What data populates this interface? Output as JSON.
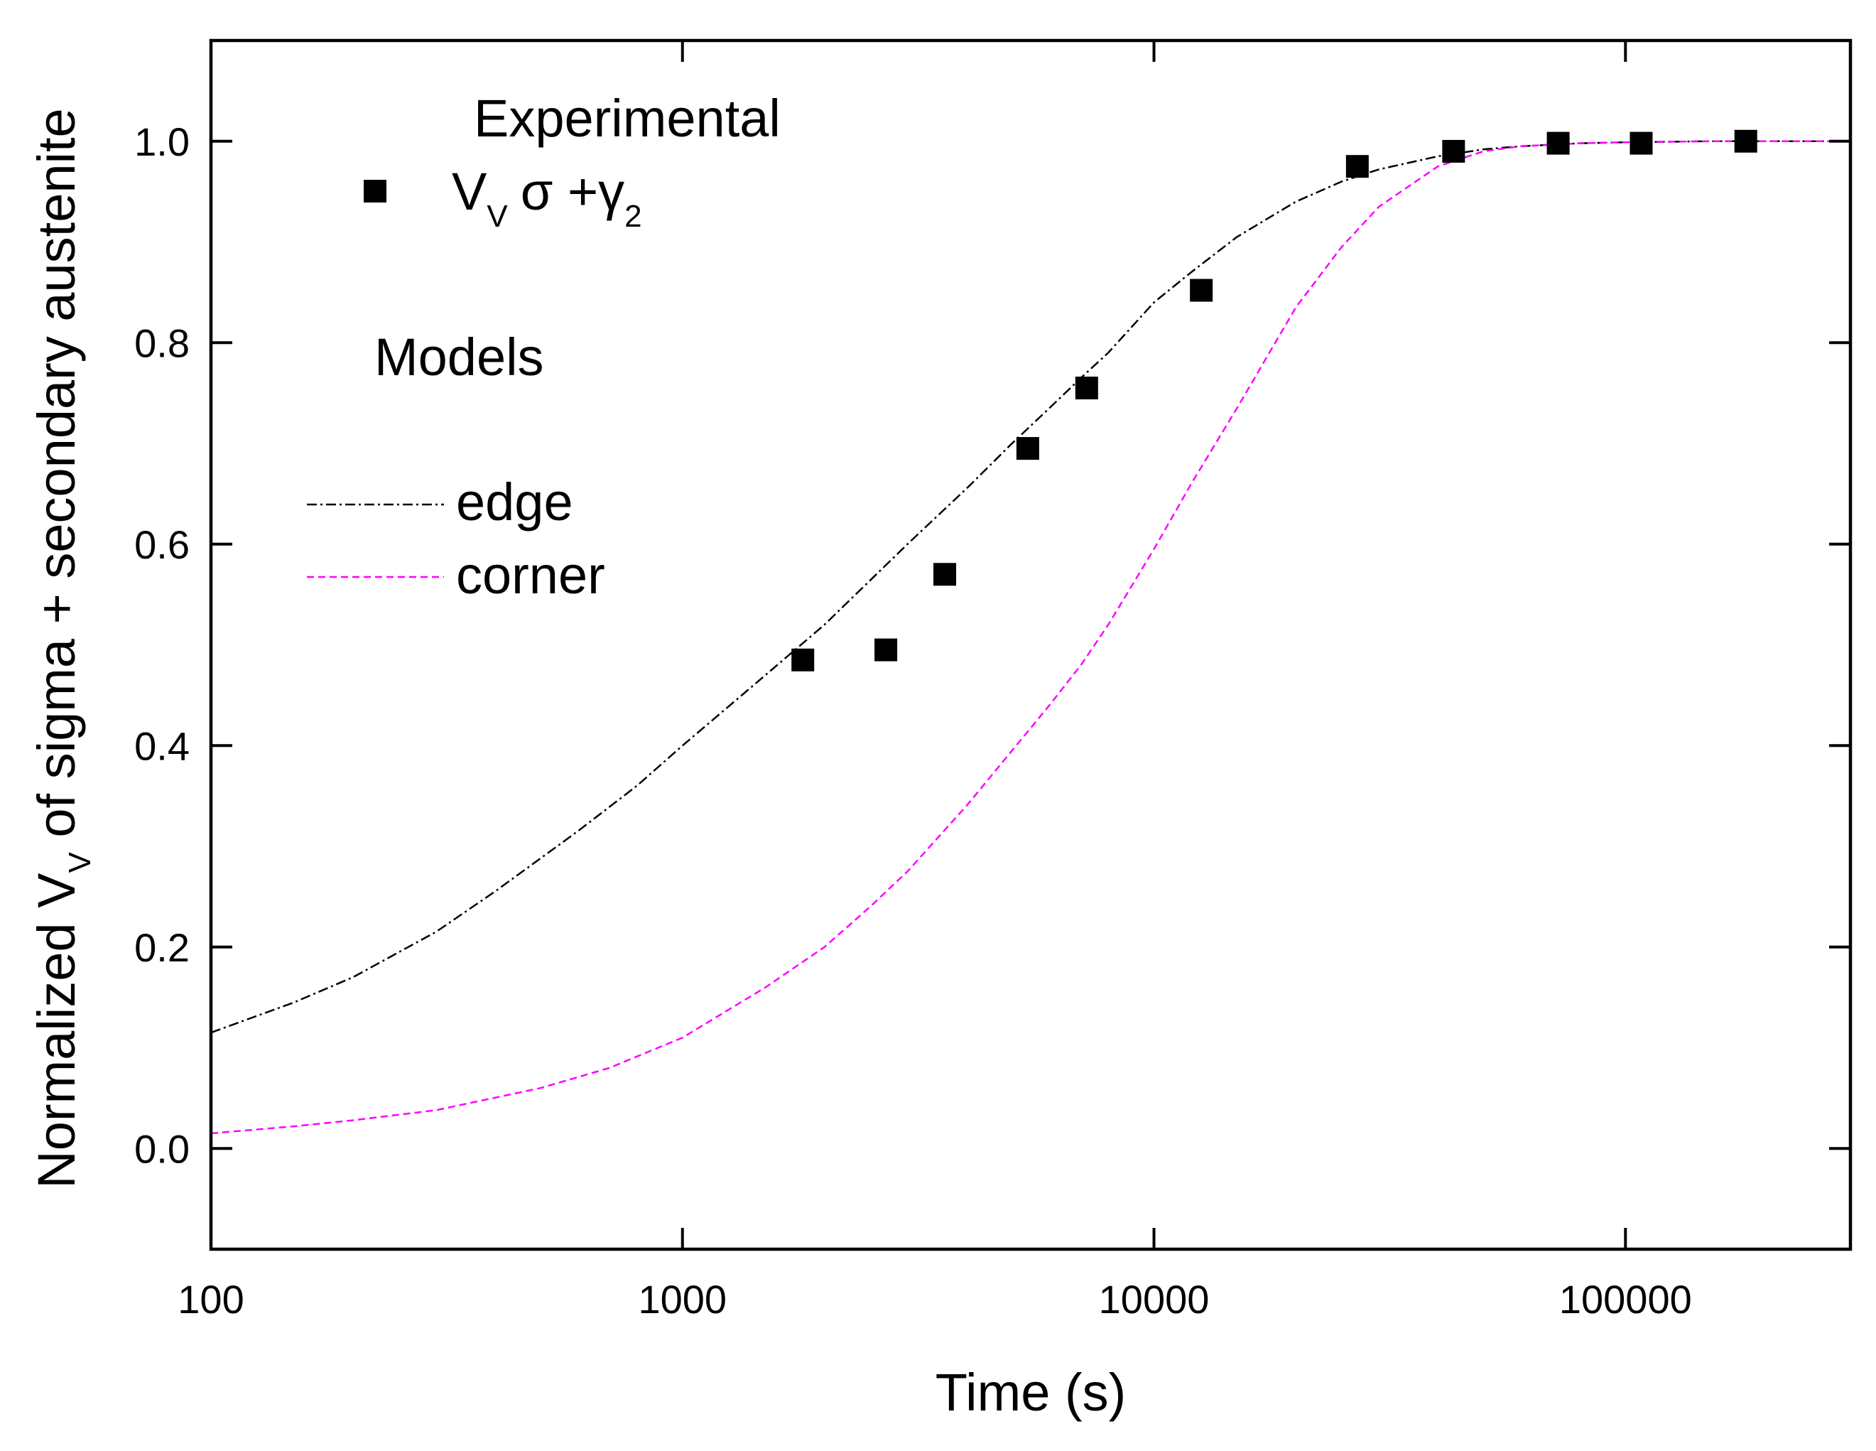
{
  "chart_data": {
    "type": "scatter",
    "title": "",
    "xlabel": "Time (s)",
    "ylabel": {
      "prefix": "Normalized V",
      "sub": "V",
      "suffix": " of sigma + secondary austenite"
    },
    "xscale": "log",
    "xlim": [
      100,
      300000
    ],
    "ylim": [
      -0.1,
      1.1
    ],
    "xticks": [
      100,
      1000,
      10000,
      100000
    ],
    "xtick_labels": [
      "100",
      "1000",
      "10000",
      "100000"
    ],
    "yticks": [
      0.0,
      0.2,
      0.4,
      0.6,
      0.8,
      1.0
    ],
    "ytick_labels": [
      "0.0",
      "0.2",
      "0.4",
      "0.6",
      "0.8",
      "1.0"
    ],
    "grid": false,
    "legend": {
      "experimental_heading": "Experimental",
      "experimental_entry": {
        "main": "V",
        "sub": "V",
        "sigma": "σ +",
        "gamma": "γ",
        "gamma_sub": "2"
      },
      "models_heading": "Models",
      "placement": "top-left"
    },
    "series": [
      {
        "name": "Experimental Vv sigma + gamma2",
        "kind": "markers",
        "marker": "square",
        "color": "#000000",
        "x": [
          1800,
          2700,
          3600,
          5400,
          7200,
          12600,
          27000,
          43200,
          72000,
          108000,
          180000
        ],
        "y": [
          0.485,
          0.495,
          0.57,
          0.695,
          0.755,
          0.852,
          0.975,
          0.99,
          0.998,
          0.998,
          1.0
        ]
      },
      {
        "name": "edge",
        "kind": "line",
        "dash": "dashdot",
        "color": "#000000",
        "x": [
          100,
          150,
          200,
          300,
          400,
          600,
          800,
          1000,
          1500,
          2000,
          3000,
          4000,
          5000,
          6000,
          7000,
          8000,
          10000,
          12000,
          15000,
          20000,
          25000,
          30000,
          40000,
          50000,
          60000,
          80000,
          100000,
          150000,
          200000,
          300000
        ],
        "y": [
          0.115,
          0.145,
          0.17,
          0.215,
          0.255,
          0.315,
          0.36,
          0.4,
          0.47,
          0.52,
          0.6,
          0.655,
          0.7,
          0.735,
          0.765,
          0.79,
          0.84,
          0.87,
          0.905,
          0.94,
          0.96,
          0.972,
          0.985,
          0.992,
          0.995,
          0.998,
          0.999,
          1.0,
          1.0,
          1.0
        ]
      },
      {
        "name": "corner",
        "kind": "line",
        "dash": "dashed",
        "color": "#ff00ff",
        "x": [
          100,
          150,
          200,
          300,
          500,
          700,
          1000,
          1500,
          2000,
          2500,
          3000,
          4000,
          5000,
          6000,
          7000,
          8000,
          10000,
          12000,
          15000,
          20000,
          25000,
          30000,
          40000,
          50000,
          60000,
          80000,
          100000,
          150000,
          200000,
          300000
        ],
        "y": [
          0.015,
          0.022,
          0.028,
          0.038,
          0.06,
          0.08,
          0.11,
          0.16,
          0.2,
          0.24,
          0.275,
          0.34,
          0.395,
          0.44,
          0.48,
          0.52,
          0.595,
          0.66,
          0.735,
          0.835,
          0.895,
          0.935,
          0.975,
          0.99,
          0.995,
          0.998,
          0.999,
          1.0,
          1.0,
          1.0
        ]
      }
    ]
  }
}
